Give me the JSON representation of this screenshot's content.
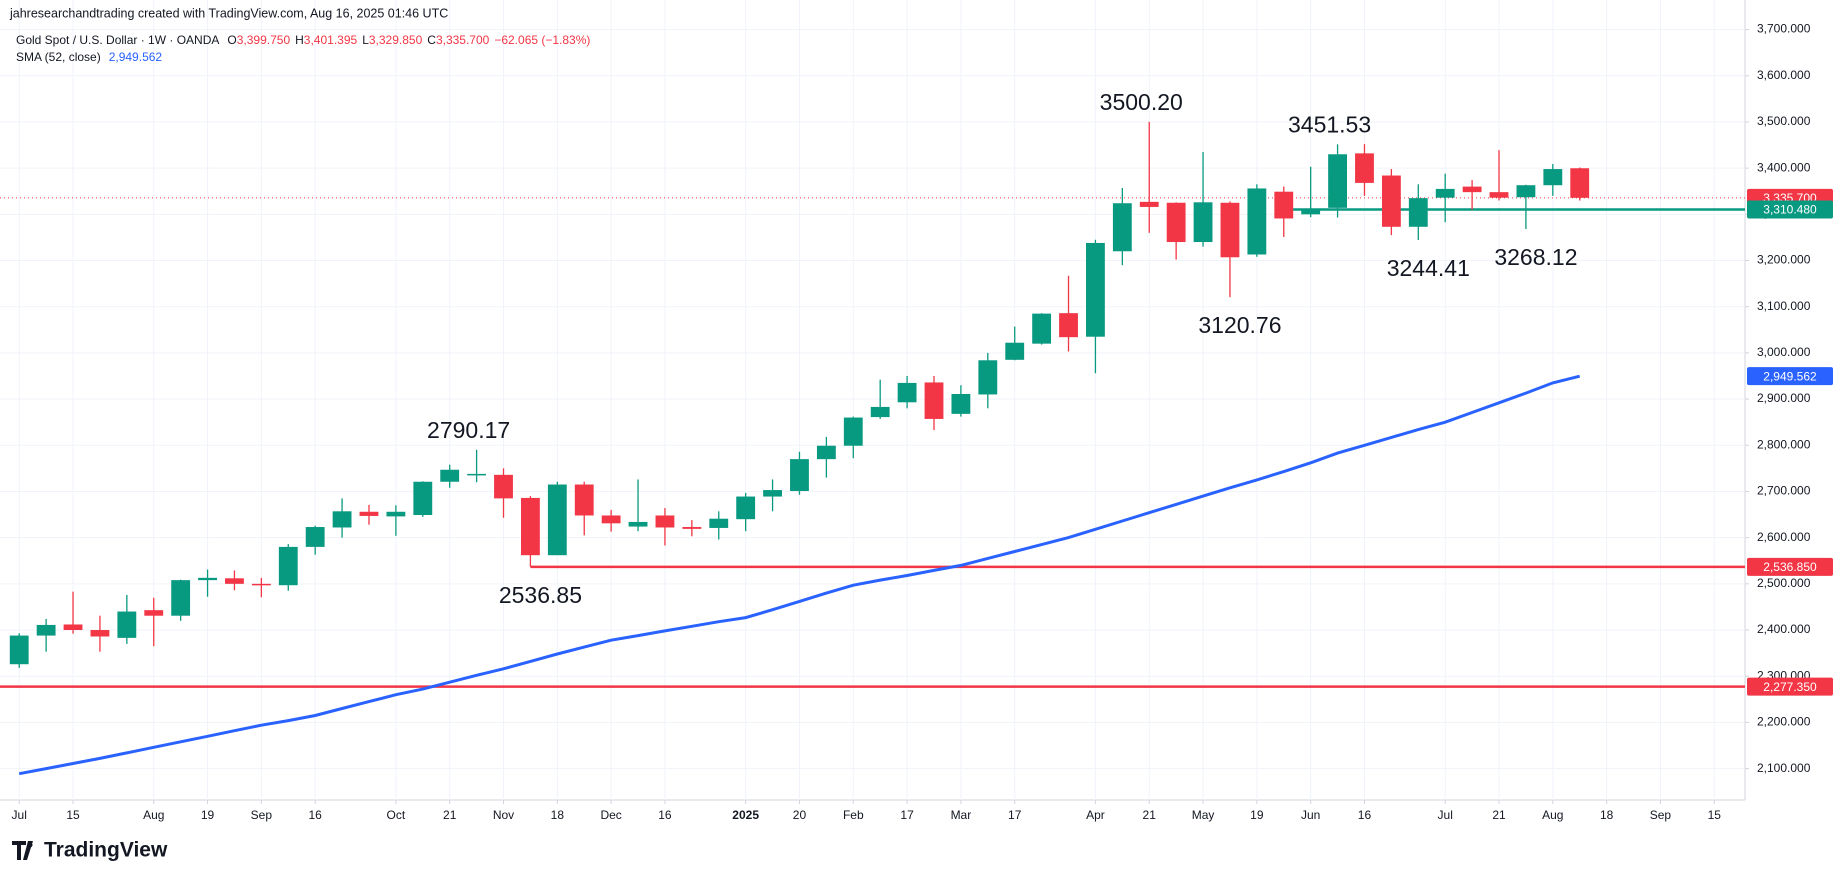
{
  "header": {
    "credit": "jahresearchandtrading created with TradingView.com, Aug 16, 2025 01:46 UTC",
    "symbol": "Gold Spot / U.S. Dollar · 1W · OANDA",
    "ohlc": [
      {
        "key": "O",
        "value": "3,399.750"
      },
      {
        "key": "H",
        "value": "3,401.395"
      },
      {
        "key": "L",
        "value": "3,329.850"
      },
      {
        "key": "C",
        "value": "3,335.700"
      }
    ],
    "change": "−62.065 (−1.83%)"
  },
  "footer": {
    "brand": "TradingView"
  },
  "chart_data": {
    "type": "candlestick",
    "up_color": "#089981",
    "down_color": "#f23645",
    "grid": true,
    "x": [
      "2024-07-01",
      "2024-07-08",
      "2024-07-15",
      "2024-07-22",
      "2024-07-29",
      "2024-08-05",
      "2024-08-12",
      "2024-08-19",
      "2024-08-26",
      "2024-09-02",
      "2024-09-09",
      "2024-09-16",
      "2024-09-23",
      "2024-09-30",
      "2024-10-07",
      "2024-10-14",
      "2024-10-21",
      "2024-10-28",
      "2024-11-04",
      "2024-11-11",
      "2024-11-18",
      "2024-11-25",
      "2024-12-02",
      "2024-12-09",
      "2024-12-16",
      "2024-12-23",
      "2024-12-30",
      "2025-01-06",
      "2025-01-13",
      "2025-01-20",
      "2025-01-27",
      "2025-02-03",
      "2025-02-10",
      "2025-02-17",
      "2025-02-24",
      "2025-03-03",
      "2025-03-10",
      "2025-03-17",
      "2025-03-24",
      "2025-03-31",
      "2025-04-07",
      "2025-04-14",
      "2025-04-21",
      "2025-04-28",
      "2025-05-05",
      "2025-05-12",
      "2025-05-19",
      "2025-05-26",
      "2025-06-02",
      "2025-06-09",
      "2025-06-16",
      "2025-06-23",
      "2025-06-30",
      "2025-07-07",
      "2025-07-14",
      "2025-07-21",
      "2025-07-28",
      "2025-08-04",
      "2025-08-11"
    ],
    "open": [
      2326,
      2388,
      2412,
      2400,
      2383,
      2443,
      2431,
      2508,
      2512,
      2500,
      2497,
      2580,
      2622,
      2656,
      2646,
      2649,
      2721,
      2736,
      2736,
      2686,
      2562,
      2715,
      2648,
      2624,
      2648,
      2623,
      2621,
      2640,
      2689,
      2701,
      2770,
      2799,
      2861,
      2893,
      2936,
      2868,
      2910,
      2985,
      3020,
      3086,
      3035,
      3220,
      3327,
      3325,
      3240,
      3325,
      3213,
      3349,
      3300,
      3314,
      3432,
      3384,
      3273,
      3336,
      3360,
      3348,
      3337,
      3363,
      3399.75
    ],
    "high": [
      2393,
      2424,
      2483,
      2431,
      2476,
      2470,
      2509,
      2531,
      2529,
      2513,
      2586,
      2626,
      2685,
      2671,
      2670,
      2722,
      2758,
      2790.17,
      2750,
      2690,
      2721,
      2721,
      2660,
      2726,
      2664,
      2638,
      2657,
      2697,
      2726,
      2786,
      2818,
      2862,
      2942,
      2950,
      2950,
      2930,
      3000,
      3057,
      3086,
      3167,
      3245,
      3357,
      3500.2,
      3326,
      3435,
      3328,
      3365,
      3360,
      3403,
      3451.53,
      3452,
      3398,
      3365,
      3388,
      3374,
      3439,
      3364,
      3409,
      3401.395
    ],
    "low": [
      2318,
      2353,
      2392,
      2353,
      2370,
      2365,
      2420,
      2472,
      2486,
      2471,
      2485,
      2563,
      2600,
      2628,
      2604,
      2645,
      2708,
      2720,
      2643,
      2536.85,
      2564,
      2605,
      2613,
      2614,
      2583,
      2603,
      2596,
      2614,
      2657,
      2693,
      2730,
      2772,
      2857,
      2880,
      2833,
      2862,
      2880,
      2984,
      3018,
      3003,
      2956,
      3190,
      3260,
      3202,
      3230,
      3120.76,
      3208,
      3251,
      3294,
      3293,
      3340,
      3255,
      3244.41,
      3283,
      3310,
      3330,
      3268.12,
      3340,
      3329.85
    ],
    "close": [
      2388,
      2411,
      2400,
      2386,
      2440,
      2431,
      2508,
      2513,
      2500,
      2497,
      2580,
      2623,
      2657,
      2647,
      2656,
      2721,
      2747,
      2738,
      2685,
      2562,
      2715,
      2648,
      2631,
      2634,
      2622,
      2619,
      2641,
      2689,
      2703,
      2770,
      2799,
      2860,
      2883,
      2935,
      2857,
      2911,
      2984,
      3022,
      3085,
      3034,
      3238,
      3324,
      3316,
      3240,
      3326,
      3207,
      3356,
      3291,
      3310,
      3430,
      3368,
      3273,
      3335,
      3355,
      3348,
      3336,
      3363,
      3398,
      3335.7
    ],
    "sma": {
      "name": "SMA (52, close)",
      "color": "#2962ff",
      "last_label": "2,949.562",
      "values": [
        2089,
        2100,
        2111,
        2122,
        2134,
        2146,
        2158,
        2170,
        2182,
        2194,
        2204,
        2215,
        2230,
        2245,
        2260,
        2272,
        2287,
        2302,
        2316,
        2332,
        2348,
        2363,
        2378,
        2388,
        2398,
        2408,
        2418,
        2427,
        2444,
        2462,
        2480,
        2497,
        2508,
        2518,
        2529,
        2540,
        2555,
        2570,
        2585,
        2600,
        2618,
        2636,
        2654,
        2672,
        2690,
        2708,
        2725,
        2743,
        2762,
        2783,
        2800,
        2817,
        2834,
        2850,
        2871,
        2892,
        2913,
        2935,
        2949.562
      ]
    },
    "hlines": [
      {
        "value": 3335.7,
        "label": "3,335.700",
        "color": "#f23645",
        "style": "dotted",
        "from": "2024-06-26"
      },
      {
        "value": 3310.48,
        "label": "3,310.480",
        "color": "#089981",
        "style": "solid",
        "from": "2025-05-26"
      },
      {
        "value": 2536.85,
        "label": "2,536.850",
        "color": "#f23645",
        "style": "solid",
        "from": "2024-11-11"
      },
      {
        "value": 2277.35,
        "label": "2,277.350",
        "color": "#f23645",
        "style": "solid",
        "from": "2024-06-26"
      }
    ],
    "annotations": [
      {
        "text": "2790.17",
        "x": "2024-10-28",
        "y": 2790.17
      },
      {
        "text": "2536.85",
        "x": "2024-11-11",
        "y": 2536.85
      },
      {
        "text": "3500.20",
        "x": "2025-04-21",
        "y": 3500.2
      },
      {
        "text": "3120.76",
        "x": "2025-05-12",
        "y": 3120.76
      },
      {
        "text": "3451.53",
        "x": "2025-06-09",
        "y": 3451.53
      },
      {
        "text": "3244.41",
        "x": "2025-06-30",
        "y": 3244.41
      },
      {
        "text": "3268.12",
        "x": "2025-07-28",
        "y": 3268.12
      }
    ],
    "xlim": [
      "2024-06-26",
      "2025-09-23"
    ],
    "xticks": [
      {
        "value": "2024-07-01",
        "label": "Jul"
      },
      {
        "value": "2024-07-15",
        "label": "15"
      },
      {
        "value": "2024-08-05",
        "label": "Aug"
      },
      {
        "value": "2024-08-19",
        "label": "19"
      },
      {
        "value": "2024-09-02",
        "label": "Sep"
      },
      {
        "value": "2024-09-16",
        "label": "16"
      },
      {
        "value": "2024-10-07",
        "label": "Oct"
      },
      {
        "value": "2024-10-21",
        "label": "21"
      },
      {
        "value": "2024-11-04",
        "label": "Nov"
      },
      {
        "value": "2024-11-18",
        "label": "18"
      },
      {
        "value": "2024-12-02",
        "label": "Dec"
      },
      {
        "value": "2024-12-16",
        "label": "16"
      },
      {
        "value": "2025-01-06",
        "label": "2025"
      },
      {
        "value": "2025-01-20",
        "label": "20"
      },
      {
        "value": "2025-02-03",
        "label": "Feb"
      },
      {
        "value": "2025-02-17",
        "label": "17"
      },
      {
        "value": "2025-03-03",
        "label": "Mar"
      },
      {
        "value": "2025-03-17",
        "label": "17"
      },
      {
        "value": "2025-04-07",
        "label": "Apr"
      },
      {
        "value": "2025-04-21",
        "label": "21"
      },
      {
        "value": "2025-05-05",
        "label": "May"
      },
      {
        "value": "2025-05-19",
        "label": "19"
      },
      {
        "value": "2025-06-02",
        "label": "Jun"
      },
      {
        "value": "2025-06-16",
        "label": "16"
      },
      {
        "value": "2025-07-07",
        "label": "Jul"
      },
      {
        "value": "2025-07-21",
        "label": "21"
      },
      {
        "value": "2025-08-04",
        "label": "Aug"
      },
      {
        "value": "2025-08-18",
        "label": "18"
      },
      {
        "value": "2025-09-01",
        "label": "Sep"
      },
      {
        "value": "2025-09-15",
        "label": "15"
      }
    ],
    "ylim": [
      2032,
      3764
    ],
    "yticks": [
      {
        "value": 2100,
        "label": "2,100.000"
      },
      {
        "value": 2200,
        "label": "2,200.000"
      },
      {
        "value": 2300,
        "label": "2,300.000"
      },
      {
        "value": 2400,
        "label": "2,400.000"
      },
      {
        "value": 2500,
        "label": "2,500.000"
      },
      {
        "value": 2600,
        "label": "2,600.000"
      },
      {
        "value": 2700,
        "label": "2,700.000"
      },
      {
        "value": 2800,
        "label": "2,800.000"
      },
      {
        "value": 2900,
        "label": "2,900.000"
      },
      {
        "value": 3000,
        "label": "3,000.000"
      },
      {
        "value": 3100,
        "label": "3,100.000"
      },
      {
        "value": 3200,
        "label": "3,200.000"
      },
      {
        "value": 3300,
        "label": "3,300.000"
      },
      {
        "value": 3400,
        "label": "3,400.000"
      },
      {
        "value": 3500,
        "label": "3,500.000"
      },
      {
        "value": 3600,
        "label": "3,600.000"
      },
      {
        "value": 3700,
        "label": "3,700.000"
      }
    ]
  }
}
